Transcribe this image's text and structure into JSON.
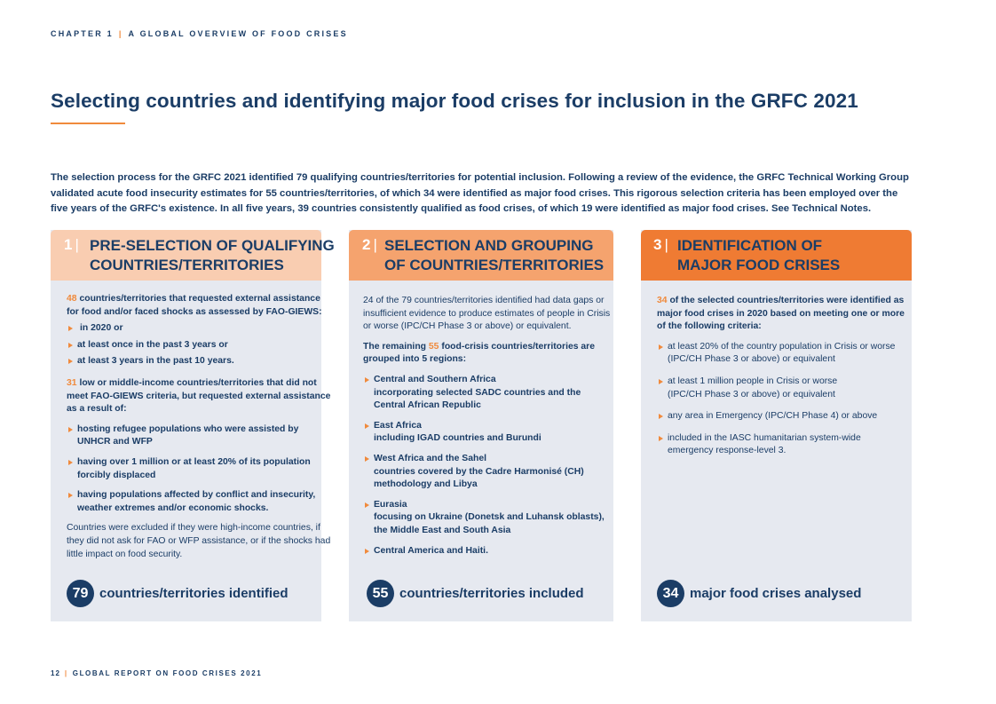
{
  "header": {
    "chapter": "CHAPTER 1",
    "separator": "|",
    "section": "A GLOBAL OVERVIEW OF FOOD CRISES"
  },
  "title": "Selecting countries and identifying major food crises for inclusion in the GRFC 2021",
  "intro": {
    "lines": [
      "The selection process for the GRFC 2021 identified 79 qualifying countries/territories for potential inclusion. Following a review of the evidence, the GRFC Technical Working Group",
      "validated acute food insecurity estimates for 55 countries/territories, of which 34 were identified as major food crises. This rigorous selection criteria has been employed over the",
      "five years of the GRFC's existence. In all five years, 39 countries consistently qualified as food crises, of which 19 were identified as major food crises. See Technical Notes."
    ]
  },
  "columns": [
    {
      "number": "1",
      "separator": "|",
      "heading_lines": [
        "PRE-SELECTION OF QUALIFYING",
        "COUNTRIES/TERRITORIES"
      ],
      "para1": {
        "num": "48",
        "line1": " countries/territories that requested external assistance",
        "line2": "for food and/or faced shocks as assessed by FAO-GIEWS:"
      },
      "bullets1": [
        "in 2020 or",
        "at least once in the past 3 years or",
        "at least 3 years in the past 10 years."
      ],
      "para2": {
        "num": "31",
        "line1": " low or middle-income countries/territories that did not",
        "line2": "meet FAO-GIEWS criteria, but requested external assistance",
        "line3": "as a result of:"
      },
      "bullets2": [
        [
          "hosting refugee populations who were assisted by",
          "UNHCR and WFP"
        ],
        [
          "having over 1 million or at least 20% of its population",
          "forcibly displaced"
        ],
        [
          "having populations affected by conflict and insecurity,",
          "weather extremes and/or economic shocks."
        ]
      ],
      "note": [
        "Countries were excluded if they were high-income countries, if",
        "they did not ask for FAO or WFP assistance, or if the shocks had",
        "little impact on food security."
      ],
      "footer": {
        "number": "79",
        "text": "countries/territories identified"
      }
    },
    {
      "number": "2",
      "separator": "|",
      "heading_lines": [
        "SELECTION AND GROUPING",
        "OF COUNTRIES/TERRITORIES"
      ],
      "para1": [
        "24 of the 79 countries/territories identified had data gaps or",
        "insufficient evidence to produce estimates of people in Crisis",
        "or worse (IPC/CH Phase 3 or above) or equivalent."
      ],
      "para2": {
        "pre": "The remaining ",
        "num": "55",
        "post": " food-crisis countries/territories are",
        "line2": "grouped into 5 regions:"
      },
      "regions": [
        {
          "name": "Central and Southern Africa",
          "desc": [
            "incorporating selected SADC countries and the",
            "Central African Republic"
          ]
        },
        {
          "name": "East Africa",
          "desc": [
            "including IGAD countries and Burundi"
          ]
        },
        {
          "name": "West Africa and the Sahel",
          "desc": [
            "countries covered by the Cadre Harmonisé (CH)",
            "methodology and Libya"
          ]
        },
        {
          "name": "Eurasia",
          "desc": [
            "focusing on Ukraine (Donetsk and Luhansk oblasts),",
            "the Middle East and South Asia"
          ]
        },
        {
          "name": "Central America and Haiti.",
          "desc": []
        }
      ],
      "footer": {
        "number": "55",
        "text": "countries/territories included"
      }
    },
    {
      "number": "3",
      "separator": "|",
      "heading_lines": [
        "IDENTIFICATION OF",
        "MAJOR FOOD CRISES"
      ],
      "para1": {
        "num": "34",
        "line1": " of the selected countries/territories were identified as",
        "line2": "major food crises in 2020 based on meeting one or more",
        "line3": "of the following criteria:"
      },
      "criteria": [
        [
          "at least 20% of the country population in Crisis or worse",
          "(IPC/CH Phase 3 or above) or equivalent"
        ],
        [
          "at least 1 million people in Crisis or worse",
          "(IPC/CH Phase 3 or above) or equivalent"
        ],
        [
          "any area in Emergency (IPC/CH Phase 4) or above"
        ],
        [
          "included in the IASC humanitarian system-wide",
          "emergency response-level 3."
        ]
      ],
      "footer": {
        "number": "34",
        "text": "major food crises analysed"
      }
    }
  ],
  "page_footer": {
    "page": "12",
    "separator": "|",
    "text": "GLOBAL REPORT ON FOOD CRISES 2021"
  },
  "colors": {
    "navy": "#1b3d66",
    "orange": "#f08a3c",
    "panel_bg": "#e6e9f0",
    "head1": "#f9cdb1",
    "head2": "#f5a36e",
    "head3": "#ef7b33"
  }
}
